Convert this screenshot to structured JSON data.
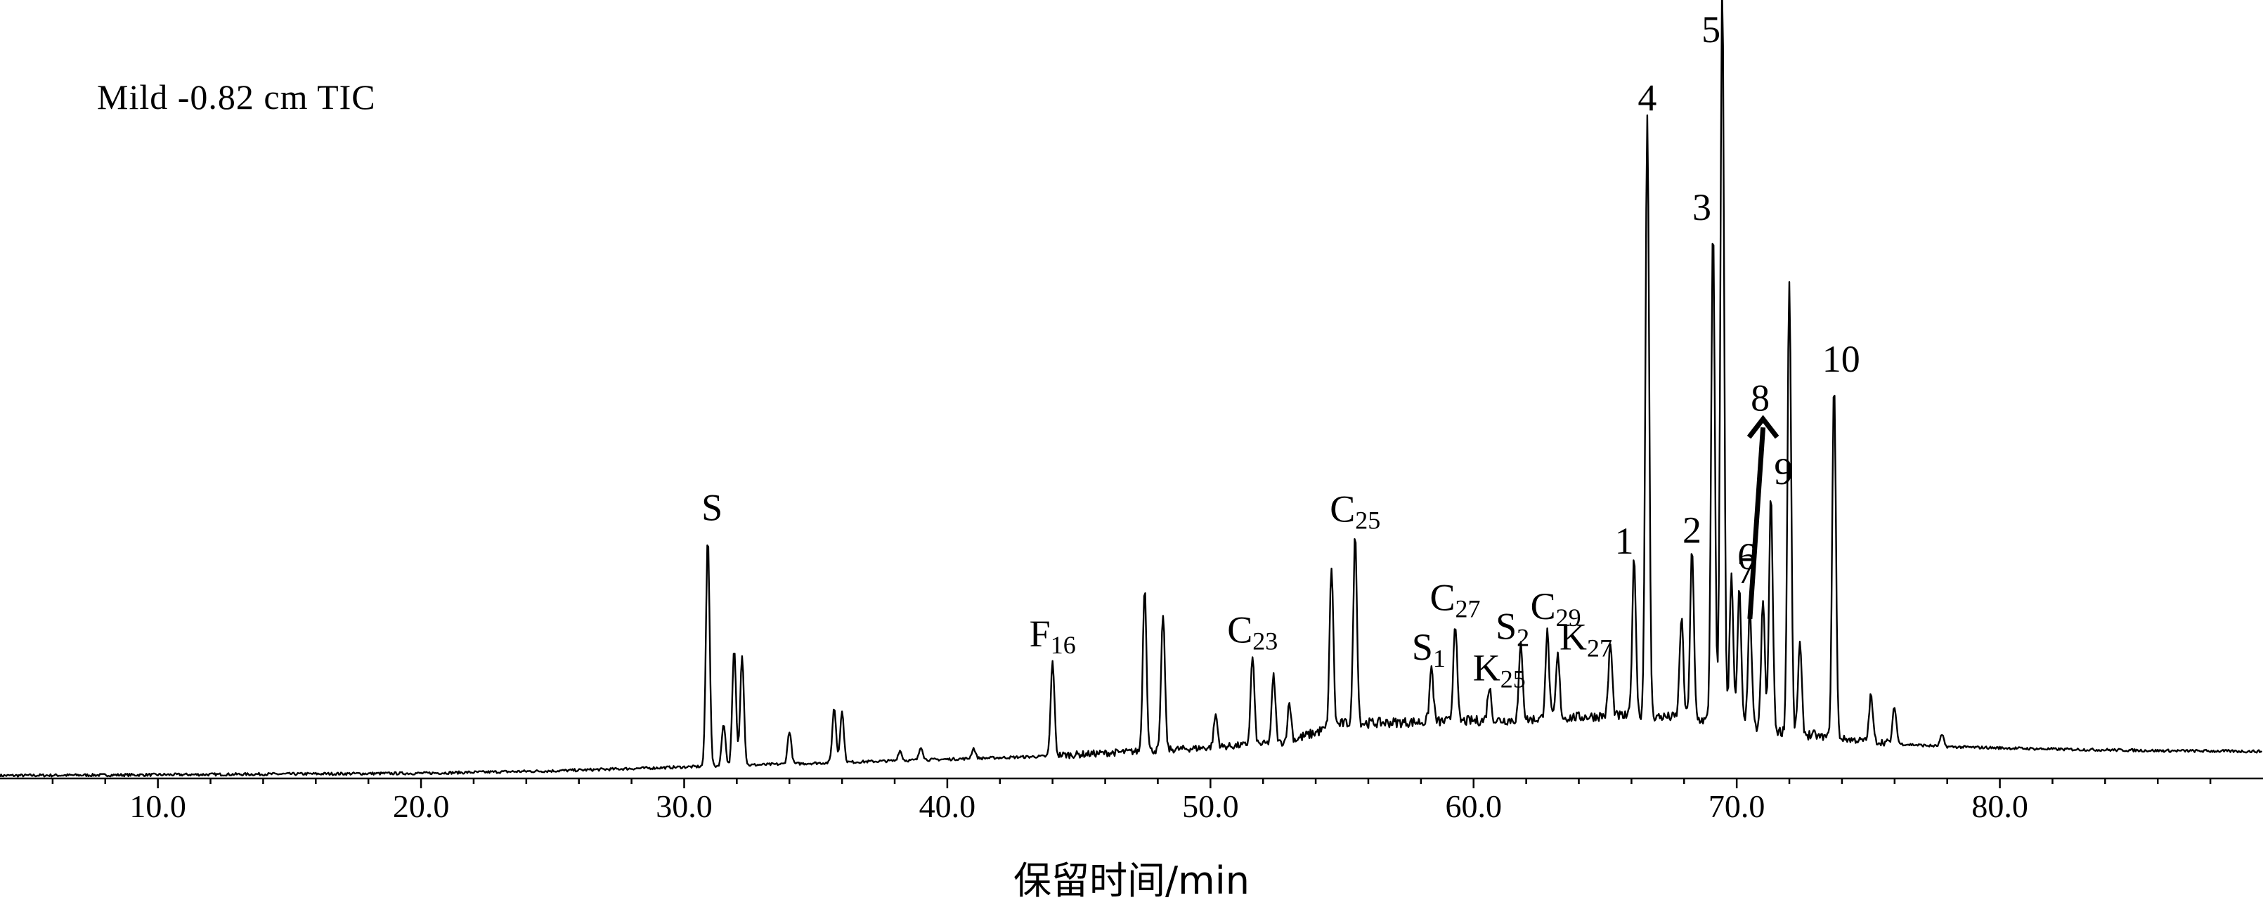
{
  "chart_data": {
    "type": "line",
    "title": "Mild -0.82 cm TIC",
    "xlabel": "保留时间/min",
    "ylabel": "",
    "xlim": [
      4.0,
      90.0
    ],
    "ylim": [
      0,
      100
    ],
    "grid": false,
    "xticks": [
      10.0,
      20.0,
      30.0,
      40.0,
      50.0,
      60.0,
      70.0,
      80.0
    ],
    "xtick_labels": [
      "10.0",
      "20.0",
      "30.0",
      "40.0",
      "50.0",
      "60.0",
      "70.0",
      "80.0"
    ],
    "baseline": {
      "x": [
        4.0,
        10.0,
        20.0,
        25.0,
        30.0,
        35.0,
        40.0,
        45.0,
        50.0,
        53.0,
        55.0,
        58.0,
        62.0,
        65.0,
        68.0,
        70.0,
        72.0,
        75.0,
        78.0,
        82.0,
        86.0,
        90.0
      ],
      "y": [
        0.3,
        0.4,
        0.6,
        0.9,
        1.4,
        1.9,
        2.4,
        2.9,
        3.8,
        4.5,
        6.8,
        7.0,
        7.3,
        7.8,
        7.6,
        6.6,
        5.6,
        4.6,
        4.0,
        3.7,
        3.5,
        3.4
      ]
    },
    "peaks": [
      {
        "x": 30.9,
        "y": 31.0,
        "label": "S"
      },
      {
        "x": 31.5,
        "y": 7.0
      },
      {
        "x": 31.9,
        "y": 16.5
      },
      {
        "x": 32.2,
        "y": 15.8
      },
      {
        "x": 34.0,
        "y": 6.0
      },
      {
        "x": 35.7,
        "y": 9.0
      },
      {
        "x": 36.0,
        "y": 8.5
      },
      {
        "x": 38.2,
        "y": 3.5
      },
      {
        "x": 39.0,
        "y": 4.0
      },
      {
        "x": 41.0,
        "y": 3.8
      },
      {
        "x": 44.0,
        "y": 15.0,
        "label": "F16"
      },
      {
        "x": 47.5,
        "y": 24.5
      },
      {
        "x": 48.2,
        "y": 21.0
      },
      {
        "x": 50.2,
        "y": 8.0
      },
      {
        "x": 51.6,
        "y": 15.5,
        "label": "C23"
      },
      {
        "x": 52.4,
        "y": 13.0
      },
      {
        "x": 53.0,
        "y": 9.5
      },
      {
        "x": 54.6,
        "y": 27.0
      },
      {
        "x": 55.5,
        "y": 31.0,
        "label": "C25"
      },
      {
        "x": 58.4,
        "y": 14.0,
        "label": "S1"
      },
      {
        "x": 59.3,
        "y": 20.0,
        "label": "C27"
      },
      {
        "x": 60.6,
        "y": 11.5,
        "label": "K25"
      },
      {
        "x": 61.8,
        "y": 17.0,
        "label": "S2"
      },
      {
        "x": 62.8,
        "y": 18.5,
        "label": "C29"
      },
      {
        "x": 63.2,
        "y": 15.5,
        "label": "K27"
      },
      {
        "x": 65.2,
        "y": 17.0
      },
      {
        "x": 66.1,
        "y": 28.0,
        "label": "1"
      },
      {
        "x": 66.6,
        "y": 84.5,
        "label": "4"
      },
      {
        "x": 67.9,
        "y": 20.5
      },
      {
        "x": 68.3,
        "y": 29.0,
        "label": "2"
      },
      {
        "x": 69.1,
        "y": 70.5,
        "label": "3"
      },
      {
        "x": 69.45,
        "y": 102.0,
        "label": "5"
      },
      {
        "x": 69.8,
        "y": 26.0,
        "label": "6"
      },
      {
        "x": 70.1,
        "y": 24.0,
        "label": "7"
      },
      {
        "x": 70.5,
        "y": 21.5
      },
      {
        "x": 71.0,
        "y": 22.5
      },
      {
        "x": 71.3,
        "y": 36.0,
        "label": "9"
      },
      {
        "x": 72.0,
        "y": 63.5
      },
      {
        "x": 72.4,
        "y": 17.0
      },
      {
        "x": 73.7,
        "y": 51.0,
        "label": "10"
      },
      {
        "x": 75.1,
        "y": 10.5
      },
      {
        "x": 76.0,
        "y": 9.0
      },
      {
        "x": 77.8,
        "y": 5.5
      }
    ],
    "arrow": {
      "label": "8",
      "from": [
        70.5,
        20.5
      ],
      "to": [
        71.0,
        46.0
      ]
    }
  }
}
